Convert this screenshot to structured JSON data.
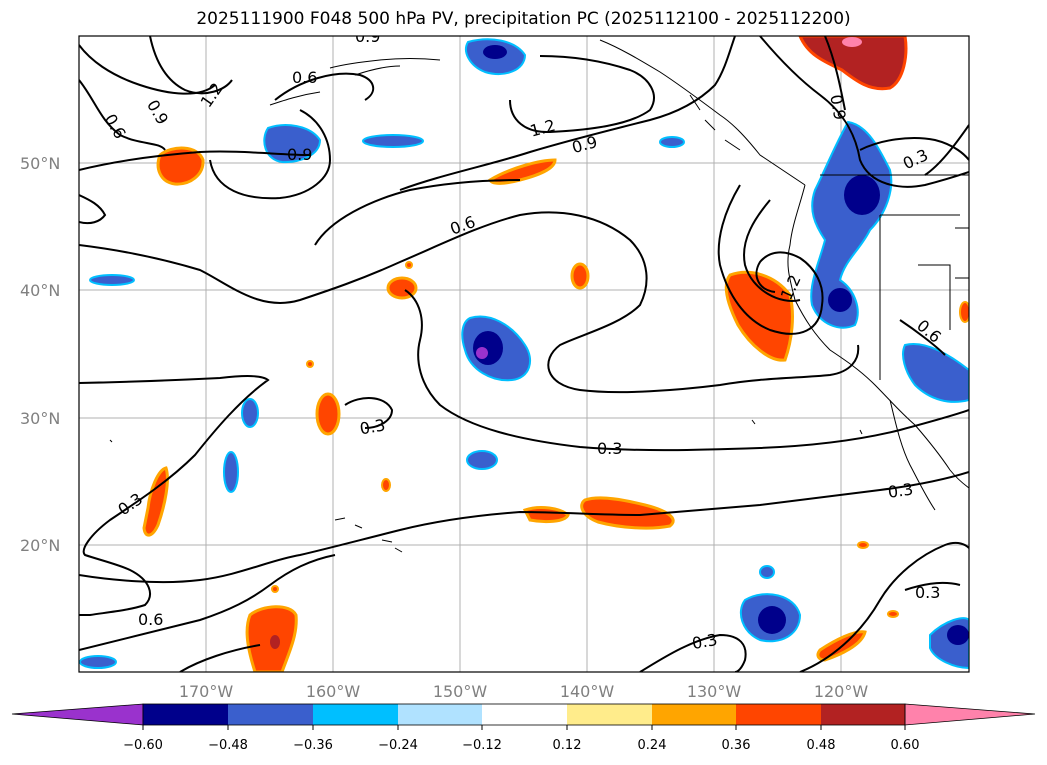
{
  "title": "2025111900 F048 500 hPa PV, precipitation PC (2025112100 - 2025112200)",
  "map": {
    "lat_labels": [
      "50°N",
      "40°N",
      "30°N",
      "20°N"
    ],
    "lon_labels": [
      "170°W",
      "160°W",
      "150°W",
      "140°W",
      "130°W",
      "120°W"
    ],
    "contour_labels": [
      "0.6",
      "1.2",
      "0.9",
      "0.9",
      "0.6",
      "0.9",
      "1.2",
      "0.9",
      "0.6",
      "1.2",
      "0.9",
      "0.3",
      "0.3",
      "0.3",
      "0.3",
      "0.3",
      "0.3",
      "0.6",
      "0.3",
      "0.6",
      "0.6"
    ]
  },
  "colorbar": {
    "colors": [
      "#9a32cd",
      "#00008b",
      "#3a5fcd",
      "#00bfff",
      "#b0e2ff",
      "#ffffff",
      "#ffec8b",
      "#ffa500",
      "#ff4500",
      "#b22222",
      "#ff82ab"
    ],
    "tick_labels": [
      "−0.60",
      "−0.48",
      "−0.36",
      "−0.24",
      "−0.12",
      "0.12",
      "0.24",
      "0.36",
      "0.48",
      "0.60"
    ]
  }
}
